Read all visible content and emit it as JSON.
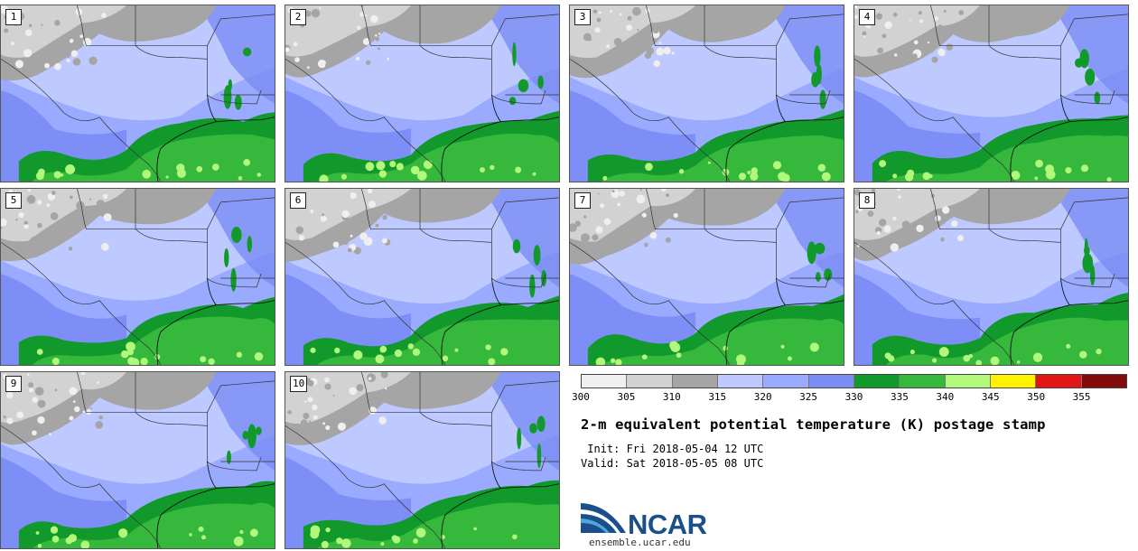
{
  "stamps": [
    "1",
    "2",
    "3",
    "4",
    "5",
    "6",
    "7",
    "8",
    "9",
    "10"
  ],
  "colorbar": {
    "colors": [
      "#efefef",
      "#d2d2d2",
      "#a5a5a5",
      "#bdc9ff",
      "#9aaaff",
      "#7a8cf5",
      "#119a2b",
      "#35b83c",
      "#b2f87a",
      "#fff200",
      "#e31616",
      "#830a0a"
    ],
    "ticks": [
      "300",
      "305",
      "310",
      "315",
      "320",
      "325",
      "330",
      "335",
      "340",
      "345",
      "350",
      "355"
    ]
  },
  "title": "2-m equivalent potential temperature (K) postage stamp",
  "init_line": " Init: Fri 2018-05-04 12 UTC",
  "valid_line": "Valid: Sat 2018-05-05 08 UTC",
  "logo_text": "NCAR",
  "site": "ensemble.ucar.edu"
}
